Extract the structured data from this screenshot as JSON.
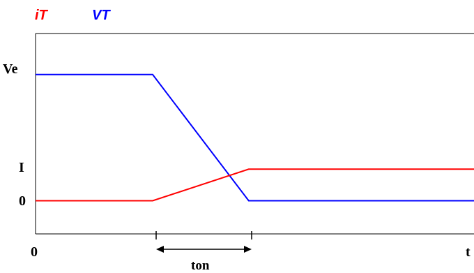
{
  "chart_data": {
    "type": "line",
    "title": "",
    "xlabel": "",
    "ylabel": "",
    "legend": {
      "placement": "top-left",
      "entries": [
        {
          "label": "iT",
          "color": "#ff0000"
        },
        {
          "label": "VT",
          "color": "#0000ff"
        }
      ]
    },
    "x_ticks": [
      "0",
      "t"
    ],
    "y_ticks": [
      "Ve",
      "I",
      "0"
    ],
    "annotation": {
      "label": "ton"
    },
    "grid": false,
    "series": [
      {
        "name": "iT",
        "color": "#ff0000",
        "points": [
          [
            0,
            0
          ],
          [
            1,
            0
          ],
          [
            1.82,
            1
          ],
          [
            3.75,
            1
          ]
        ]
      },
      {
        "name": "VT",
        "color": "#0000ff",
        "points": [
          [
            0,
            4.0
          ],
          [
            1,
            4.0
          ],
          [
            1.82,
            0
          ],
          [
            3.75,
            0
          ]
        ]
      }
    ],
    "xlim": [
      0,
      3.75
    ],
    "ylim": [
      -1.05,
      5.3
    ]
  }
}
